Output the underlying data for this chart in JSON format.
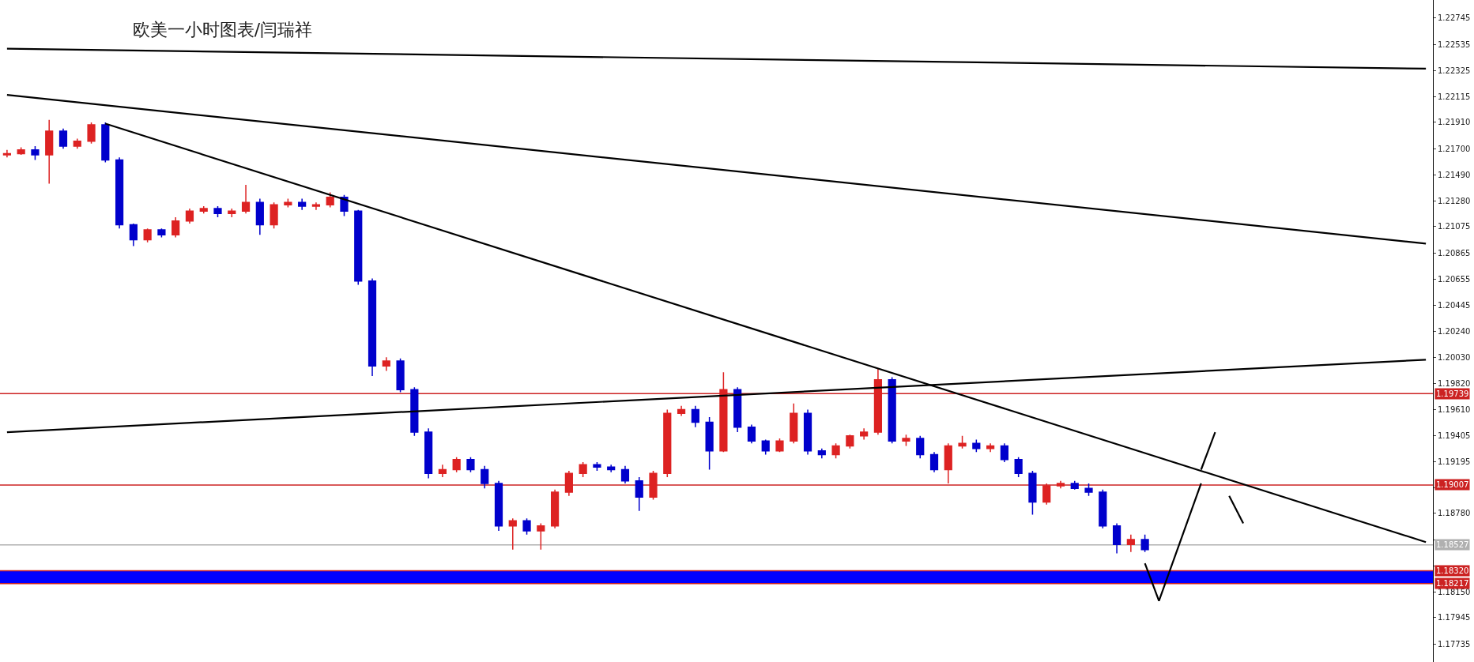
{
  "chart_data": {
    "type": "candlestick",
    "title": "欧美一小时图表/闫瑞祥",
    "categories": [
      null,
      null,
      null,
      null,
      null,
      null,
      null,
      null,
      null,
      null,
      null,
      null,
      null,
      null,
      null,
      null,
      null,
      null,
      null,
      null,
      null,
      null,
      null,
      null,
      null,
      null,
      null,
      null,
      null,
      null,
      null,
      null,
      null,
      null,
      null,
      null,
      null,
      null,
      null,
      null,
      null,
      null,
      null,
      null,
      null,
      null,
      null,
      null,
      null,
      null,
      null,
      null,
      null,
      null,
      null,
      null,
      null,
      null,
      null,
      null,
      null,
      null,
      null,
      null,
      null,
      null,
      null,
      null,
      null,
      null,
      null,
      null,
      null,
      null,
      null,
      null,
      null,
      null,
      null,
      null,
      null,
      null,
      null,
      null,
      null,
      null,
      null,
      null,
      null,
      null,
      null,
      null,
      null,
      null,
      null,
      null,
      null,
      null,
      null,
      null,
      null,
      null
    ],
    "ylim": [
      1.1759,
      1.2289
    ],
    "yticks": [
      {
        "value": 1.22745,
        "label": "1.22745"
      },
      {
        "value": 1.22535,
        "label": "1.22535"
      },
      {
        "value": 1.22325,
        "label": "1.22325"
      },
      {
        "value": 1.22115,
        "label": "1.22115"
      },
      {
        "value": 1.2191,
        "label": "1.21910"
      },
      {
        "value": 1.217,
        "label": "1.21700"
      },
      {
        "value": 1.2149,
        "label": "1.21490"
      },
      {
        "value": 1.2128,
        "label": "1.21280"
      },
      {
        "value": 1.21075,
        "label": "1.21075"
      },
      {
        "value": 1.20865,
        "label": "1.20865"
      },
      {
        "value": 1.20655,
        "label": "1.20655"
      },
      {
        "value": 1.20445,
        "label": "1.20445"
      },
      {
        "value": 1.2024,
        "label": "1.20240"
      },
      {
        "value": 1.2003,
        "label": "1.20030"
      },
      {
        "value": 1.1982,
        "label": "1.19820"
      },
      {
        "value": 1.1961,
        "label": "1.19610"
      },
      {
        "value": 1.19405,
        "label": "1.19405"
      },
      {
        "value": 1.19195,
        "label": "1.19195"
      },
      {
        "value": 1.18985,
        "label": null
      },
      {
        "value": 1.1878,
        "label": "1.18780"
      },
      {
        "value": 1.1857,
        "label": null
      },
      {
        "value": 1.1836,
        "label": null
      },
      {
        "value": 1.1815,
        "label": "1.18150"
      },
      {
        "value": 1.17945,
        "label": "1.17945"
      },
      {
        "value": 1.17735,
        "label": "1.17735"
      }
    ],
    "tick_labels": "y",
    "grid": false,
    "bands": [
      {
        "axis": "y",
        "from": 1.18217,
        "to": 1.1832,
        "color": "#0000ff"
      }
    ],
    "ref_lines": [
      {
        "axis": "y",
        "value": 1.19739,
        "label": "1.19739",
        "color": "#cc2222"
      },
      {
        "axis": "y",
        "value": 1.19007,
        "label": "1.19007",
        "color": "#cc2222"
      },
      {
        "axis": "y",
        "value": 1.18527,
        "label": "1.18527",
        "color": "#b0b0b0"
      },
      {
        "axis": "y",
        "value": 1.1832,
        "label": "1.18320",
        "color": "#cc2222"
      },
      {
        "axis": "y",
        "value": 1.18217,
        "label": "1.18217",
        "color": "#cc2222"
      }
    ],
    "series": [
      {
        "colors": [
          "#dd2222",
          "#dd2222",
          "#0000cc",
          "#dd2222",
          "#0000cc",
          "#dd2222",
          "#dd2222",
          "#0000cc",
          "#0000cc",
          "#0000cc",
          "#dd2222",
          "#0000cc",
          "#dd2222",
          "#dd2222",
          "#dd2222",
          "#0000cc",
          "#dd2222",
          "#dd2222",
          "#0000cc",
          "#dd2222",
          "#dd2222",
          "#0000cc",
          "#dd2222",
          "#dd2222",
          "#0000cc",
          "#0000cc",
          "#0000cc",
          "#dd2222",
          "#0000cc",
          "#0000cc",
          "#0000cc",
          "#dd2222",
          "#dd2222",
          "#0000cc",
          "#0000cc",
          "#0000cc",
          "#dd2222",
          "#0000cc",
          "#dd2222",
          "#dd2222",
          "#dd2222",
          "#dd2222",
          "#0000cc",
          "#0000cc",
          "#0000cc",
          "#0000cc",
          "#dd2222",
          "#dd2222",
          "#dd2222",
          "#0000cc",
          "#0000cc",
          "#dd2222",
          "#0000cc",
          "#0000cc",
          "#0000cc",
          "#dd2222",
          "#dd2222",
          "#0000cc",
          "#0000cc",
          "#dd2222",
          "#dd2222",
          "#dd2222",
          "#dd2222",
          "#0000cc",
          "#dd2222",
          "#0000cc",
          "#0000cc",
          "#dd2222",
          "#dd2222",
          "#0000cc",
          "#dd2222",
          "#0000cc",
          "#0000cc",
          "#0000cc",
          "#dd2222",
          "#dd2222",
          "#0000cc",
          "#0000cc",
          "#0000cc",
          "#0000cc",
          "#dd2222",
          "#0000cc",
          null,
          null,
          null,
          null,
          null,
          null,
          null,
          null,
          null,
          null,
          null,
          null,
          null,
          null,
          null,
          null,
          null,
          null,
          null,
          null
        ],
        "ohlc": [
          [
            1.2165,
            1.2169,
            1.2163,
            1.2166
          ],
          [
            1.2166,
            1.2171,
            1.2165,
            1.2169
          ],
          [
            1.2169,
            1.2172,
            1.2161,
            1.2165
          ],
          [
            1.2165,
            1.2193,
            1.2142,
            1.2184
          ],
          [
            1.2184,
            1.2186,
            1.217,
            1.2172
          ],
          [
            1.2172,
            1.2178,
            1.217,
            1.2176
          ],
          [
            1.2176,
            1.2191,
            1.2174,
            1.2189
          ],
          [
            1.2189,
            1.2191,
            1.2159,
            1.2161
          ],
          [
            1.2161,
            1.2163,
            1.2106,
            1.2109
          ],
          [
            1.2109,
            1.211,
            1.2092,
            1.2097
          ],
          [
            1.2097,
            1.2106,
            1.2095,
            1.2105
          ],
          [
            1.2105,
            1.2106,
            1.2099,
            1.2101
          ],
          [
            1.2101,
            1.2115,
            1.2099,
            1.2112
          ],
          [
            1.2112,
            1.2122,
            1.211,
            1.212
          ],
          [
            1.212,
            1.2124,
            1.2118,
            1.2122
          ],
          [
            1.2122,
            1.2124,
            1.2115,
            1.2118
          ],
          [
            1.2118,
            1.2122,
            1.2115,
            1.212
          ],
          [
            1.212,
            1.2141,
            1.2118,
            1.2127
          ],
          [
            1.2127,
            1.213,
            1.2101,
            1.2109
          ],
          [
            1.2109,
            1.2127,
            1.2106,
            1.2125
          ],
          [
            1.2125,
            1.213,
            1.2123,
            1.2127
          ],
          [
            1.2127,
            1.213,
            1.2121,
            1.2124
          ],
          [
            1.2124,
            1.2127,
            1.2121,
            1.2125
          ],
          [
            1.2125,
            1.2135,
            1.2123,
            1.2131
          ],
          [
            1.2131,
            1.2133,
            1.2116,
            1.212
          ],
          [
            1.212,
            1.2121,
            1.2061,
            1.2064
          ],
          [
            1.2064,
            1.2066,
            1.1988,
            1.1996
          ],
          [
            1.1996,
            1.2003,
            1.1992,
            1.2
          ],
          [
            1.2,
            1.2002,
            1.1975,
            1.1977
          ],
          [
            1.1977,
            1.1979,
            1.194,
            1.1943
          ],
          [
            1.1943,
            1.1946,
            1.1906,
            1.191
          ],
          [
            1.191,
            1.1917,
            1.1907,
            1.1913
          ],
          [
            1.1913,
            1.1923,
            1.1911,
            1.1921
          ],
          [
            1.1921,
            1.1923,
            1.1911,
            1.1913
          ],
          [
            1.1913,
            1.1916,
            1.1898,
            1.1902
          ],
          [
            1.1902,
            1.1904,
            1.1864,
            1.1868
          ],
          [
            1.1868,
            1.1874,
            1.1849,
            1.1872
          ],
          [
            1.1872,
            1.1874,
            1.1861,
            1.1864
          ],
          [
            1.1864,
            1.187,
            1.1849,
            1.1868
          ],
          [
            1.1868,
            1.1897,
            1.1866,
            1.1895
          ],
          [
            1.1895,
            1.1912,
            1.1892,
            1.191
          ],
          [
            1.191,
            1.1919,
            1.1907,
            1.1917
          ],
          [
            1.1917,
            1.1919,
            1.1912,
            1.1915
          ],
          [
            1.1915,
            1.1917,
            1.1911,
            1.1913
          ],
          [
            1.1913,
            1.1916,
            1.1902,
            1.1904
          ],
          [
            1.1904,
            1.1907,
            1.188,
            1.1891
          ],
          [
            1.1891,
            1.1912,
            1.1889,
            1.191
          ],
          [
            1.191,
            1.1961,
            1.1907,
            1.1958
          ],
          [
            1.1958,
            1.1964,
            1.1956,
            1.1961
          ],
          [
            1.1961,
            1.1964,
            1.1947,
            1.1951
          ],
          [
            1.1951,
            1.1955,
            1.1913,
            1.1928
          ],
          [
            1.1928,
            1.1991,
            1.1927,
            1.1977
          ],
          [
            1.1977,
            1.1979,
            1.1943,
            1.1947
          ],
          [
            1.1947,
            1.1949,
            1.1934,
            1.1936
          ],
          [
            1.1936,
            1.1937,
            1.1925,
            1.1928
          ],
          [
            1.1928,
            1.1938,
            1.1927,
            1.1936
          ],
          [
            1.1936,
            1.1966,
            1.1934,
            1.1958
          ],
          [
            1.1958,
            1.1961,
            1.1925,
            1.1928
          ],
          [
            1.1928,
            1.193,
            1.1922,
            1.1925
          ],
          [
            1.1925,
            1.1934,
            1.1922,
            1.1932
          ],
          [
            1.1932,
            1.1941,
            1.193,
            1.194
          ],
          [
            1.194,
            1.1946,
            1.1937,
            1.1943
          ],
          [
            1.1943,
            1.1994,
            1.1941,
            1.1985
          ],
          [
            1.1985,
            1.1987,
            1.1934,
            1.1936
          ],
          [
            1.1936,
            1.1941,
            1.1932,
            1.1938
          ],
          [
            1.1938,
            1.194,
            1.1922,
            1.1925
          ],
          [
            1.1925,
            1.1927,
            1.1911,
            1.1913
          ],
          [
            1.1913,
            1.1934,
            1.1902,
            1.1932
          ],
          [
            1.1932,
            1.194,
            1.193,
            1.1934
          ],
          [
            1.1934,
            1.1937,
            1.1927,
            1.193
          ],
          [
            1.193,
            1.1934,
            1.1927,
            1.1932
          ],
          [
            1.1932,
            1.1934,
            1.1919,
            1.1921
          ],
          [
            1.1921,
            1.1923,
            1.1907,
            1.191
          ],
          [
            1.191,
            1.1912,
            1.1877,
            1.1887
          ],
          [
            1.1887,
            1.1902,
            1.1885,
            1.19
          ],
          [
            1.19,
            1.1904,
            1.1898,
            1.1902
          ],
          [
            1.1902,
            1.1904,
            1.1897,
            1.1898
          ],
          [
            1.1898,
            1.1902,
            1.1892,
            1.1895
          ],
          [
            1.1895,
            1.1897,
            1.1866,
            1.1868
          ],
          [
            1.1868,
            1.187,
            1.1846,
            1.1853
          ],
          [
            1.1853,
            1.1861,
            1.1847,
            1.1857
          ],
          [
            1.1857,
            1.1861,
            1.1847,
            1.1849
          ],
          null,
          null,
          null,
          null,
          null,
          null,
          null,
          null,
          null,
          null,
          null,
          null,
          null,
          null,
          null,
          null,
          null,
          null,
          null,
          null
        ]
      },
      {
        "type": "line",
        "color": "#000000",
        "values": [
          1.225,
          null,
          null,
          null,
          null,
          null,
          null,
          null,
          null,
          null,
          null,
          null,
          null,
          null,
          null,
          null,
          null,
          null,
          null,
          null,
          null,
          null,
          null,
          null,
          null,
          null,
          null,
          null,
          null,
          null,
          null,
          null,
          null,
          null,
          null,
          null,
          null,
          null,
          null,
          null,
          null,
          null,
          null,
          null,
          null,
          null,
          null,
          null,
          null,
          null,
          null,
          null,
          null,
          null,
          null,
          null,
          null,
          null,
          null,
          null,
          null,
          null,
          null,
          null,
          null,
          null,
          null,
          null,
          null,
          null,
          null,
          null,
          null,
          null,
          null,
          null,
          null,
          null,
          null,
          null,
          null,
          null,
          null,
          null,
          null,
          null,
          null,
          null,
          null,
          null,
          null,
          null,
          null,
          null,
          null,
          null,
          null,
          null,
          null,
          null,
          null,
          1.2234
        ]
      },
      {
        "type": "line",
        "color": "#000000",
        "values": [
          1.2213,
          null,
          null,
          null,
          null,
          null,
          null,
          null,
          null,
          null,
          null,
          null,
          null,
          null,
          null,
          null,
          null,
          null,
          null,
          null,
          null,
          null,
          null,
          null,
          null,
          null,
          null,
          null,
          null,
          null,
          null,
          null,
          null,
          null,
          null,
          null,
          null,
          null,
          null,
          null,
          null,
          null,
          null,
          null,
          null,
          null,
          null,
          null,
          null,
          null,
          null,
          null,
          null,
          null,
          null,
          null,
          null,
          null,
          null,
          null,
          null,
          null,
          null,
          null,
          null,
          null,
          null,
          null,
          null,
          null,
          null,
          null,
          null,
          null,
          null,
          null,
          null,
          null,
          null,
          null,
          null,
          null,
          null,
          null,
          null,
          null,
          null,
          null,
          null,
          null,
          null,
          null,
          null,
          null,
          null,
          null,
          null,
          null,
          null,
          null,
          null,
          1.2094
        ]
      },
      {
        "type": "line",
        "color": "#000000",
        "values": [
          null,
          null,
          null,
          null,
          null,
          null,
          null,
          1.219,
          null,
          null,
          null,
          null,
          null,
          null,
          null,
          null,
          null,
          null,
          null,
          null,
          null,
          null,
          null,
          null,
          null,
          null,
          null,
          null,
          null,
          null,
          null,
          null,
          null,
          null,
          null,
          null,
          null,
          null,
          null,
          null,
          null,
          null,
          null,
          null,
          null,
          null,
          null,
          null,
          null,
          null,
          null,
          null,
          null,
          null,
          null,
          null,
          null,
          null,
          null,
          null,
          null,
          null,
          null,
          null,
          null,
          null,
          null,
          null,
          null,
          null,
          null,
          null,
          null,
          null,
          null,
          null,
          null,
          null,
          null,
          null,
          null,
          null,
          null,
          null,
          null,
          null,
          null,
          null,
          null,
          null,
          null,
          null,
          null,
          null,
          null,
          null,
          null,
          null,
          null,
          null,
          null,
          1.1855
        ]
      },
      {
        "type": "line",
        "color": "#000000",
        "values": [
          1.1943,
          null,
          null,
          null,
          null,
          null,
          null,
          null,
          null,
          null,
          null,
          null,
          null,
          null,
          null,
          null,
          null,
          null,
          null,
          null,
          null,
          null,
          null,
          null,
          null,
          null,
          null,
          null,
          null,
          null,
          null,
          null,
          null,
          null,
          null,
          null,
          null,
          null,
          null,
          null,
          null,
          null,
          null,
          null,
          null,
          null,
          null,
          null,
          null,
          null,
          null,
          null,
          null,
          null,
          null,
          null,
          null,
          null,
          null,
          null,
          null,
          null,
          null,
          null,
          null,
          null,
          null,
          null,
          null,
          null,
          null,
          null,
          null,
          null,
          null,
          null,
          null,
          null,
          null,
          null,
          null,
          null,
          null,
          null,
          null,
          null,
          null,
          null,
          null,
          null,
          null,
          null,
          null,
          null,
          null,
          null,
          null,
          null,
          null,
          null,
          null,
          1.2001
        ]
      },
      {
        "type": "line",
        "color": "#000000",
        "values": [
          null,
          null,
          null,
          null,
          null,
          null,
          null,
          null,
          null,
          null,
          null,
          null,
          null,
          null,
          null,
          null,
          null,
          null,
          null,
          null,
          null,
          null,
          null,
          null,
          null,
          null,
          null,
          null,
          null,
          null,
          null,
          null,
          null,
          null,
          null,
          null,
          null,
          null,
          null,
          null,
          null,
          null,
          null,
          null,
          null,
          null,
          null,
          null,
          null,
          null,
          null,
          null,
          null,
          null,
          null,
          null,
          null,
          null,
          null,
          null,
          null,
          null,
          null,
          null,
          null,
          null,
          null,
          null,
          null,
          null,
          null,
          null,
          null,
          null,
          null,
          null,
          null,
          null,
          null,
          null,
          null,
          1.1838,
          1.1808,
          null,
          null,
          1.1902,
          null,
          null,
          null,
          null,
          null,
          null,
          null,
          null,
          null,
          null,
          null,
          null,
          null,
          null,
          null,
          null
        ]
      },
      {
        "type": "line",
        "color": "#000000",
        "values": [
          null,
          null,
          null,
          null,
          null,
          null,
          null,
          null,
          null,
          null,
          null,
          null,
          null,
          null,
          null,
          null,
          null,
          null,
          null,
          null,
          null,
          null,
          null,
          null,
          null,
          null,
          null,
          null,
          null,
          null,
          null,
          null,
          null,
          null,
          null,
          null,
          null,
          null,
          null,
          null,
          null,
          null,
          null,
          null,
          null,
          null,
          null,
          null,
          null,
          null,
          null,
          null,
          null,
          null,
          null,
          null,
          null,
          null,
          null,
          null,
          null,
          null,
          null,
          null,
          null,
          null,
          null,
          null,
          null,
          null,
          null,
          null,
          null,
          null,
          null,
          null,
          null,
          null,
          null,
          null,
          null,
          null,
          null,
          null,
          null,
          1.1913,
          1.1943,
          null,
          null,
          null,
          null,
          null,
          null,
          null,
          null,
          null,
          null,
          null,
          null,
          null,
          null,
          null
        ]
      },
      {
        "type": "line",
        "color": "#000000",
        "values": [
          null,
          null,
          null,
          null,
          null,
          null,
          null,
          null,
          null,
          null,
          null,
          null,
          null,
          null,
          null,
          null,
          null,
          null,
          null,
          null,
          null,
          null,
          null,
          null,
          null,
          null,
          null,
          null,
          null,
          null,
          null,
          null,
          null,
          null,
          null,
          null,
          null,
          null,
          null,
          null,
          null,
          null,
          null,
          null,
          null,
          null,
          null,
          null,
          null,
          null,
          null,
          null,
          null,
          null,
          null,
          null,
          null,
          null,
          null,
          null,
          null,
          null,
          null,
          null,
          null,
          null,
          null,
          null,
          null,
          null,
          null,
          null,
          null,
          null,
          null,
          null,
          null,
          null,
          null,
          null,
          null,
          null,
          null,
          null,
          null,
          null,
          null,
          1.1892,
          1.187,
          null,
          null,
          null,
          null,
          null,
          null,
          null,
          null,
          null,
          null,
          null,
          null,
          null
        ]
      }
    ]
  }
}
